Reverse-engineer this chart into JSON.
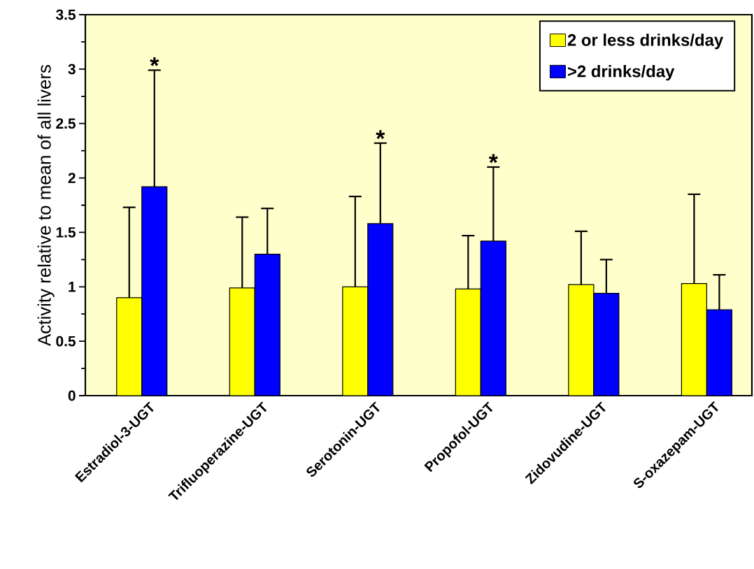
{
  "chart_data": {
    "type": "bar",
    "ylabel": "Activity relative to mean of all livers",
    "categories": [
      "Estradiol-3-UGT",
      "Trifluoperazine-UGT",
      "Serotonin-UGT",
      "Propofol-UGT",
      "Zidovudine-UGT",
      "S-oxazepam-UGT"
    ],
    "series": [
      {
        "name": "2 or less drinks/day",
        "color": "#ffff00",
        "values": [
          0.9,
          0.99,
          1.0,
          0.98,
          1.02,
          1.03
        ],
        "errors": [
          [
            0.9,
            1.73
          ],
          [
            0.99,
            1.64
          ],
          [
            1.0,
            1.83
          ],
          [
            0.98,
            1.47
          ],
          [
            1.02,
            1.51
          ],
          [
            1.03,
            1.85
          ]
        ]
      },
      {
        "name": ">2 drinks/day",
        "color": "#0000ff",
        "values": [
          1.92,
          1.3,
          1.58,
          1.42,
          0.94,
          0.79
        ],
        "errors": [
          [
            1.92,
            2.99
          ],
          [
            1.3,
            1.72
          ],
          [
            1.58,
            2.32
          ],
          [
            1.42,
            2.1
          ],
          [
            0.94,
            1.25
          ],
          [
            0.79,
            1.11
          ]
        ]
      }
    ],
    "ylim": [
      0,
      3.5
    ],
    "yticks": [
      0,
      0.5,
      1,
      1.5,
      2,
      2.5,
      3,
      3.5
    ],
    "legend": "top right",
    "grid": false,
    "annotations": [
      "*",
      "*",
      "*"
    ]
  }
}
